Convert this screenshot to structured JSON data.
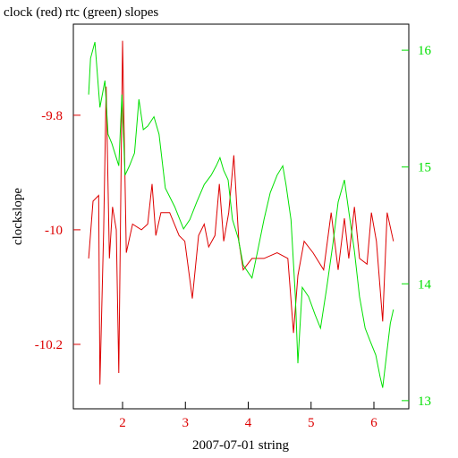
{
  "chart_data": {
    "type": "line",
    "title": "clock (red) rtc (green) slopes",
    "x_label": "2007-07-01 string",
    "y_label": "clockslope",
    "xlim": [
      1.217,
      6.555
    ],
    "xticks": [
      2,
      3,
      4,
      5,
      6
    ],
    "ylim": [
      -10.3125,
      -9.641
    ],
    "yticks": [
      -10.2,
      -10,
      -9.8
    ],
    "y2lim": [
      12.93,
      16.223
    ],
    "y2ticks": [
      13,
      14,
      15,
      16
    ],
    "series": [
      {
        "name": "clock",
        "color": "#dd0000",
        "x": [
          1.46,
          1.53,
          1.62,
          1.64,
          1.7,
          1.74,
          1.79,
          1.84,
          1.9,
          1.94,
          2.0,
          2.06,
          2.16,
          2.3,
          2.4,
          2.47,
          2.53,
          2.61,
          2.75,
          2.9,
          2.99,
          3.11,
          3.21,
          3.3,
          3.37,
          3.47,
          3.54,
          3.61,
          3.69,
          3.77,
          3.85,
          3.92,
          4.06,
          4.25,
          4.46,
          4.63,
          4.72,
          4.79,
          4.89,
          5.03,
          5.2,
          5.32,
          5.43,
          5.53,
          5.6,
          5.69,
          5.77,
          5.89,
          5.96,
          6.04,
          6.14,
          6.21,
          6.31
        ],
        "values": [
          -10.05,
          -9.95,
          -9.94,
          -10.27,
          -10.0,
          -9.75,
          -10.05,
          -9.96,
          -10.0,
          -10.25,
          -9.67,
          -10.04,
          -9.99,
          -10.0,
          -9.99,
          -9.92,
          -10.01,
          -9.97,
          -9.97,
          -10.01,
          -10.02,
          -10.12,
          -10.01,
          -9.99,
          -10.03,
          -10.01,
          -9.92,
          -10.02,
          -9.97,
          -9.87,
          -10.02,
          -10.07,
          -10.05,
          -10.05,
          -10.04,
          -10.05,
          -10.18,
          -10.08,
          -10.02,
          -10.04,
          -10.07,
          -9.97,
          -10.07,
          -9.98,
          -10.05,
          -9.96,
          -10.05,
          -10.06,
          -9.97,
          -10.02,
          -10.16,
          -9.97,
          -10.02
        ]
      },
      {
        "name": "rtc",
        "color": "#00e000",
        "axis": "y2",
        "x": [
          1.46,
          1.49,
          1.56,
          1.64,
          1.72,
          1.77,
          1.83,
          1.9,
          1.94,
          1.99,
          2.04,
          2.11,
          2.19,
          2.26,
          2.33,
          2.4,
          2.5,
          2.58,
          2.68,
          2.83,
          2.97,
          3.07,
          3.18,
          3.3,
          3.41,
          3.49,
          3.55,
          3.61,
          3.68,
          3.75,
          3.84,
          3.92,
          4.06,
          4.15,
          4.25,
          4.35,
          4.46,
          4.55,
          4.6,
          4.68,
          4.75,
          4.79,
          4.86,
          4.96,
          5.06,
          5.15,
          5.25,
          5.35,
          5.43,
          5.53,
          5.6,
          5.69,
          5.77,
          5.86,
          5.94,
          6.03,
          6.1,
          6.14,
          6.2,
          6.26,
          6.31
        ],
        "values": [
          15.62,
          15.93,
          16.07,
          15.51,
          15.74,
          15.28,
          15.2,
          15.08,
          15.01,
          15.62,
          14.93,
          15.01,
          15.12,
          15.58,
          15.32,
          15.35,
          15.43,
          15.28,
          14.82,
          14.66,
          14.47,
          14.55,
          14.7,
          14.85,
          14.93,
          15.01,
          15.08,
          14.97,
          14.89,
          14.55,
          14.39,
          14.16,
          14.05,
          14.28,
          14.55,
          14.78,
          14.93,
          15.01,
          14.85,
          14.55,
          13.89,
          13.32,
          13.97,
          13.89,
          13.74,
          13.62,
          13.97,
          14.35,
          14.7,
          14.89,
          14.62,
          14.28,
          13.89,
          13.62,
          13.51,
          13.39,
          13.2,
          13.11,
          13.39,
          13.66,
          13.78
        ]
      }
    ]
  }
}
